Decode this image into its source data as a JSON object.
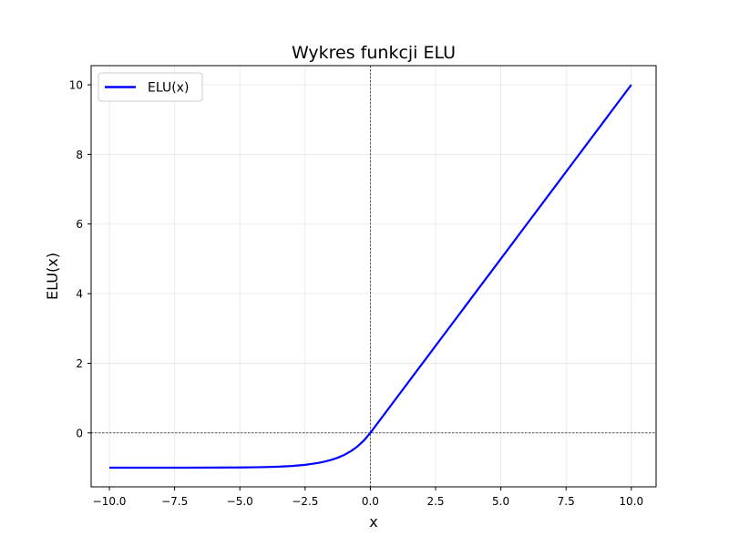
{
  "chart_data": {
    "type": "line",
    "title": "Wykres funkcji ELU",
    "xlabel": "x",
    "ylabel": "ELU(x)",
    "xlim": [
      -10.7,
      10.95
    ],
    "ylim": [
      -1.55,
      10.55
    ],
    "xticks": [
      -10.0,
      -7.5,
      -5.0,
      -2.5,
      0.0,
      2.5,
      5.0,
      7.5,
      10.0
    ],
    "xtick_labels": [
      "−10.0",
      "−7.5",
      "−5.0",
      "−2.5",
      "0.0",
      "2.5",
      "5.0",
      "7.5",
      "10.0"
    ],
    "yticks": [
      0,
      2,
      4,
      6,
      8,
      10
    ],
    "ytick_labels": [
      "0",
      "2",
      "4",
      "6",
      "8",
      "10"
    ],
    "grid": true,
    "legend": {
      "placement": "upper-left"
    },
    "reference_lines": {
      "x": 0,
      "y": 0,
      "style": "dashed",
      "color": "#000000"
    },
    "series": [
      {
        "name": "ELU(x)",
        "color": "#0000ff",
        "x": [
          -10,
          -9,
          -8,
          -7,
          -6,
          -5,
          -4.5,
          -4,
          -3.5,
          -3,
          -2.5,
          -2,
          -1.75,
          -1.5,
          -1.25,
          -1,
          -0.75,
          -0.5,
          -0.25,
          0,
          1,
          2,
          3,
          4,
          5,
          6,
          7,
          8,
          9,
          10
        ],
        "y": [
          -1.0,
          -0.9999,
          -0.9997,
          -0.9991,
          -0.9975,
          -0.9933,
          -0.9889,
          -0.9817,
          -0.9698,
          -0.9502,
          -0.9179,
          -0.8647,
          -0.8262,
          -0.7769,
          -0.7135,
          -0.6321,
          -0.5276,
          -0.3935,
          -0.2212,
          0.0,
          1,
          2,
          3,
          4,
          5,
          6,
          7,
          8,
          9,
          10
        ]
      }
    ]
  }
}
